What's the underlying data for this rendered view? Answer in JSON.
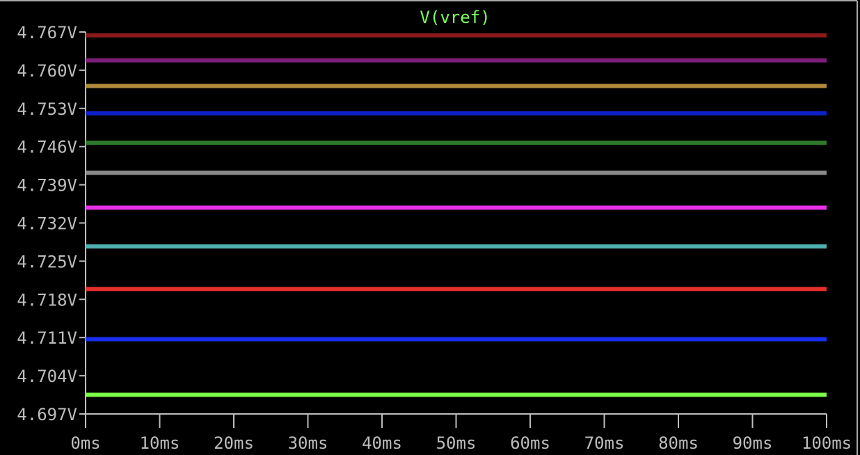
{
  "chart_data": {
    "type": "line",
    "title": "V(vref)",
    "title_color": "#7cff5a",
    "xlabel": "",
    "ylabel": "",
    "x_unit": "ms",
    "y_unit": "V",
    "xlim": [
      0,
      100
    ],
    "ylim": [
      4.697,
      4.767
    ],
    "grid": false,
    "x_ticks": [
      0,
      10,
      20,
      30,
      40,
      50,
      60,
      70,
      80,
      90,
      100
    ],
    "x_tick_labels": [
      "0ms",
      "10ms",
      "20ms",
      "30ms",
      "40ms",
      "50ms",
      "60ms",
      "70ms",
      "80ms",
      "90ms",
      "100ms"
    ],
    "y_ticks": [
      4.767,
      4.76,
      4.753,
      4.746,
      4.739,
      4.732,
      4.725,
      4.718,
      4.711,
      4.704,
      4.697
    ],
    "y_tick_labels": [
      "4.767V",
      "4.760V",
      "4.753V",
      "4.746V",
      "4.739V",
      "4.732V",
      "4.725V",
      "4.718V",
      "4.711V",
      "4.704V",
      "4.697V"
    ],
    "series": [
      {
        "color": "#8b1a1a",
        "x": [
          0,
          100
        ],
        "values": [
          4.7664,
          4.7664
        ]
      },
      {
        "color": "#7b1f7b",
        "x": [
          0,
          100
        ],
        "values": [
          4.7618,
          4.7618
        ]
      },
      {
        "color": "#b08a3a",
        "x": [
          0,
          100
        ],
        "values": [
          4.7571,
          4.7571
        ]
      },
      {
        "color": "#1020c8",
        "x": [
          0,
          100
        ],
        "values": [
          4.7521,
          4.7521
        ]
      },
      {
        "color": "#2f7a2a",
        "x": [
          0,
          100
        ],
        "values": [
          4.7467,
          4.7467
        ]
      },
      {
        "color": "#8a8a8a",
        "x": [
          0,
          100
        ],
        "values": [
          4.7412,
          4.7412
        ]
      },
      {
        "color": "#e830e8",
        "x": [
          0,
          100
        ],
        "values": [
          4.7348,
          4.7348
        ]
      },
      {
        "color": "#4fb0b0",
        "x": [
          0,
          100
        ],
        "values": [
          4.7277,
          4.7277
        ]
      },
      {
        "color": "#e8302a",
        "x": [
          0,
          100
        ],
        "values": [
          4.7199,
          4.7199
        ]
      },
      {
        "color": "#1a2ef0",
        "x": [
          0,
          100
        ],
        "values": [
          4.7107,
          4.7107
        ]
      },
      {
        "color": "#7cff4a",
        "x": [
          0,
          100
        ],
        "values": [
          4.7005,
          4.7005
        ]
      }
    ]
  }
}
